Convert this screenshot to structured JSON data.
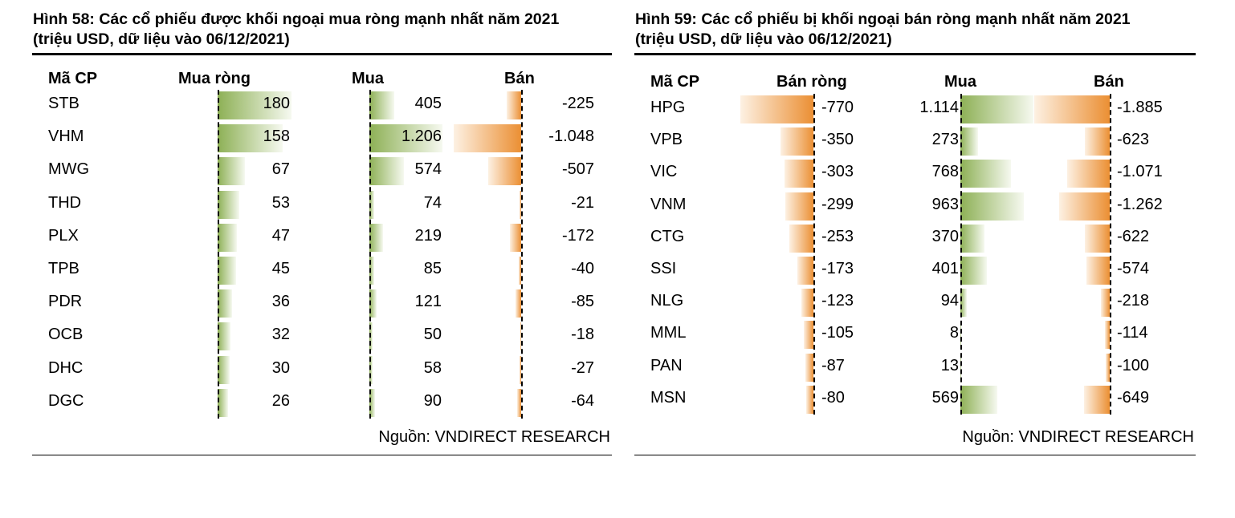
{
  "chart_data": [
    {
      "type": "table",
      "title": "Hình 58: Các cổ phiếu được khối ngoại mua ròng mạnh nhất năm 2021",
      "subtitle": "(triệu USD, dữ liệu vào 06/12/2021)",
      "columns": [
        "Mã CP",
        "Mua ròng",
        "Mua",
        "Bán"
      ],
      "rows": [
        {
          "code": "STB",
          "net": "180",
          "buy": "405",
          "sell": "-225"
        },
        {
          "code": "VHM",
          "net": "158",
          "buy": "1.206",
          "sell": "-1.048"
        },
        {
          "code": "MWG",
          "net": "67",
          "buy": "574",
          "sell": "-507"
        },
        {
          "code": "THD",
          "net": "53",
          "buy": "74",
          "sell": "-21"
        },
        {
          "code": "PLX",
          "net": "47",
          "buy": "219",
          "sell": "-172"
        },
        {
          "code": "TPB",
          "net": "45",
          "buy": "85",
          "sell": "-40"
        },
        {
          "code": "PDR",
          "net": "36",
          "buy": "121",
          "sell": "-85"
        },
        {
          "code": "OCB",
          "net": "32",
          "buy": "50",
          "sell": "-18"
        },
        {
          "code": "DHC",
          "net": "30",
          "buy": "58",
          "sell": "-27"
        },
        {
          "code": "DGC",
          "net": "26",
          "buy": "90",
          "sell": "-64"
        }
      ],
      "source": "Nguồn: VNDIRECT RESEARCH"
    },
    {
      "type": "table",
      "title": "Hình 59: Các cổ phiếu bị khối ngoại bán ròng mạnh nhất năm 2021",
      "subtitle": "(triệu USD, dữ liệu vào 06/12/2021)",
      "columns": [
        "Mã CP",
        "Bán ròng",
        "Mua",
        "Bán"
      ],
      "rows": [
        {
          "code": "HPG",
          "net": "-770",
          "buy": "1.114",
          "sell": "-1.885"
        },
        {
          "code": "VPB",
          "net": "-350",
          "buy": "273",
          "sell": "-623"
        },
        {
          "code": "VIC",
          "net": "-303",
          "buy": "768",
          "sell": "-1.071"
        },
        {
          "code": "VNM",
          "net": "-299",
          "buy": "963",
          "sell": "-1.262"
        },
        {
          "code": "CTG",
          "net": "-253",
          "buy": "370",
          "sell": "-622"
        },
        {
          "code": "SSI",
          "net": "-173",
          "buy": "401",
          "sell": "-574"
        },
        {
          "code": "NLG",
          "net": "-123",
          "buy": "94",
          "sell": "-218"
        },
        {
          "code": "MML",
          "net": "-105",
          "buy": "8",
          "sell": "-114"
        },
        {
          "code": "PAN",
          "net": "-87",
          "buy": "13",
          "sell": "-100"
        },
        {
          "code": "MSN",
          "net": "-80",
          "buy": "569",
          "sell": "-649"
        }
      ],
      "source": "Nguồn: VNDIRECT RESEARCH"
    }
  ]
}
